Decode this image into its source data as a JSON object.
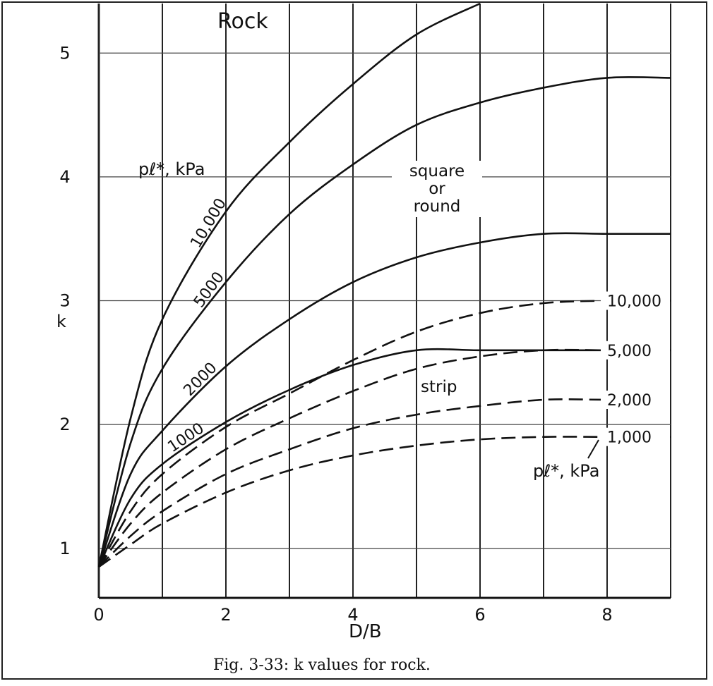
{
  "chart_data": {
    "type": "line",
    "title": "Rock",
    "xlabel": "D/B",
    "ylabel": "k",
    "xlim": [
      0,
      9
    ],
    "ylim": [
      0.6,
      5.4
    ],
    "grid": true,
    "x_ticks": [
      "0",
      "2",
      "4",
      "6",
      "8"
    ],
    "x_tick_values": [
      0,
      2,
      4,
      6,
      8
    ],
    "y_ticks": [
      "1",
      "2",
      "3",
      "4",
      "5"
    ],
    "y_tick_values": [
      1,
      2,
      3,
      4,
      5
    ],
    "square_group_label": "square\nor\nround",
    "strip_group_label": "strip",
    "legend_title": "pℓ*, kPa",
    "series": [
      {
        "name": "10,000",
        "group": "square or round",
        "style": "solid",
        "x": [
          0,
          0.5,
          1,
          2,
          3,
          4,
          5,
          6
        ],
        "y": [
          0.85,
          2.05,
          2.85,
          3.72,
          4.28,
          4.75,
          5.15,
          5.4
        ]
      },
      {
        "name": "5000",
        "group": "square or round",
        "style": "solid",
        "x": [
          0,
          0.5,
          1,
          2,
          3,
          4,
          5,
          6,
          7,
          8,
          9
        ],
        "y": [
          0.85,
          1.85,
          2.45,
          3.15,
          3.7,
          4.1,
          4.42,
          4.6,
          4.72,
          4.8,
          4.8
        ]
      },
      {
        "name": "2000",
        "group": "square or round",
        "style": "solid",
        "x": [
          0,
          0.5,
          1,
          2,
          3,
          4,
          5,
          6,
          7,
          8,
          9
        ],
        "y": [
          0.85,
          1.6,
          1.95,
          2.47,
          2.85,
          3.15,
          3.35,
          3.47,
          3.54,
          3.54,
          3.54
        ]
      },
      {
        "name": "1000",
        "group": "square or round",
        "style": "solid",
        "x": [
          0,
          0.5,
          1,
          2,
          3,
          4,
          5,
          6,
          7,
          8,
          9
        ],
        "y": [
          0.85,
          1.4,
          1.68,
          2.02,
          2.28,
          2.48,
          2.6,
          2.6,
          2.6,
          2.6,
          2.6
        ]
      },
      {
        "name": "10,000",
        "group": "strip",
        "style": "dashed",
        "x": [
          0,
          0.5,
          1,
          2,
          3,
          4,
          5,
          6,
          7,
          8,
          9
        ],
        "y": [
          0.85,
          1.3,
          1.6,
          1.98,
          2.25,
          2.52,
          2.75,
          2.9,
          2.98,
          3.0,
          3.0
        ]
      },
      {
        "name": "5,000",
        "group": "strip",
        "style": "dashed",
        "x": [
          0,
          0.5,
          1,
          2,
          3,
          4,
          5,
          6,
          7,
          8,
          9
        ],
        "y": [
          0.85,
          1.2,
          1.45,
          1.8,
          2.05,
          2.27,
          2.45,
          2.55,
          2.6,
          2.6,
          2.6
        ]
      },
      {
        "name": "2,000",
        "group": "strip",
        "style": "dashed",
        "x": [
          0,
          0.5,
          1,
          2,
          3,
          4,
          5,
          6,
          7,
          8,
          9
        ],
        "y": [
          0.85,
          1.1,
          1.3,
          1.6,
          1.8,
          1.97,
          2.08,
          2.15,
          2.2,
          2.2,
          2.2
        ]
      },
      {
        "name": "1,000",
        "group": "strip",
        "style": "dashed",
        "x": [
          0,
          0.5,
          1,
          2,
          3,
          4,
          5,
          6,
          7,
          8,
          9
        ],
        "y": [
          0.85,
          1.03,
          1.2,
          1.45,
          1.63,
          1.75,
          1.83,
          1.88,
          1.9,
          1.9,
          1.9
        ]
      }
    ],
    "caption": "Fig. 3-33: k values for rock."
  }
}
